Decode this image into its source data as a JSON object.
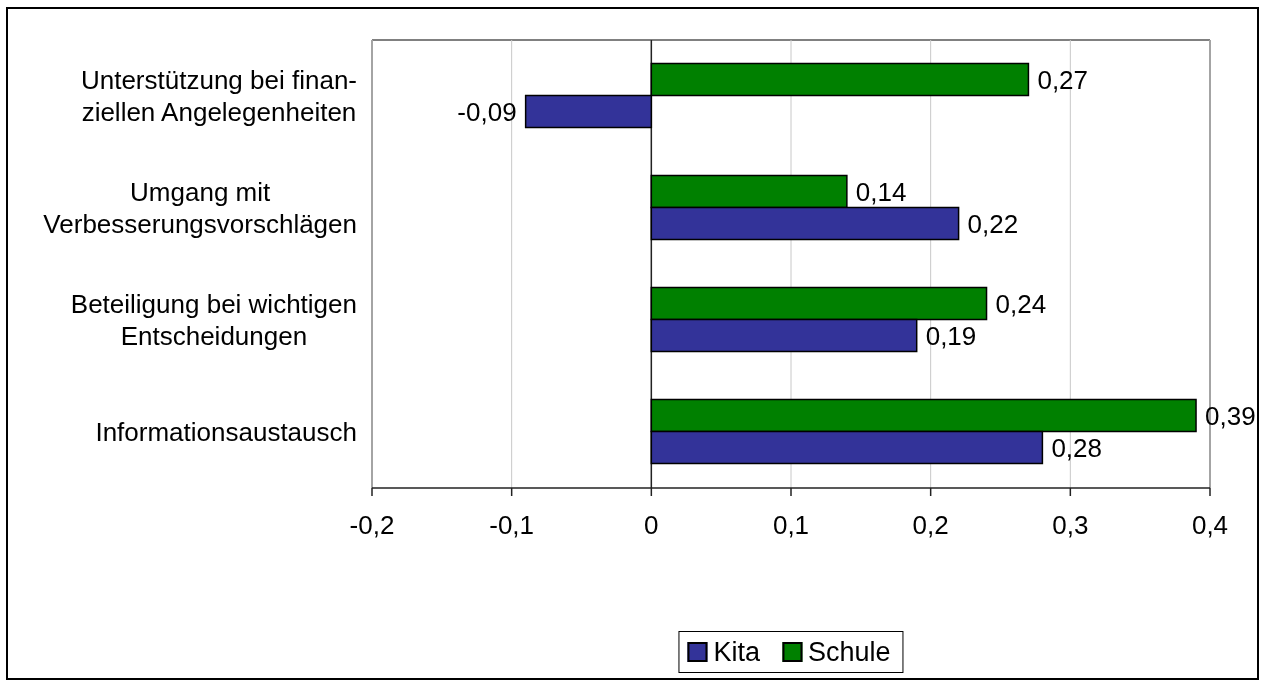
{
  "chart_data": {
    "type": "bar",
    "orientation": "horizontal",
    "categories": [
      "Unterstützung bei finan-\nziellen Angelegenheiten",
      "Umgang mit\nVerbesserungsvorschlägen",
      "Beteiligung bei wichtigen\nEntscheidungen",
      "Informationsaustausch"
    ],
    "series": [
      {
        "name": "Kita",
        "color": "#333399",
        "values": [
          -0.09,
          0.22,
          0.19,
          0.28
        ],
        "value_labels": [
          "-0,09",
          "0,22",
          "0,19",
          "0,28"
        ]
      },
      {
        "name": "Schule",
        "color": "#008000",
        "values": [
          0.27,
          0.14,
          0.24,
          0.39
        ],
        "value_labels": [
          "0,27",
          "0,14",
          "0,24",
          "0,39"
        ]
      }
    ],
    "xlim": [
      -0.2,
      0.4
    ],
    "xticks": [
      {
        "value": -0.2,
        "label": "-0,2"
      },
      {
        "value": -0.1,
        "label": "-0,1"
      },
      0,
      {
        "value": 0.1,
        "label": "0,1"
      },
      {
        "value": 0.2,
        "label": "0,2"
      },
      {
        "value": 0.3,
        "label": "0,3"
      },
      {
        "value": 0.4,
        "label": "0,4"
      }
    ],
    "grid": "x",
    "legend": "bottom"
  }
}
